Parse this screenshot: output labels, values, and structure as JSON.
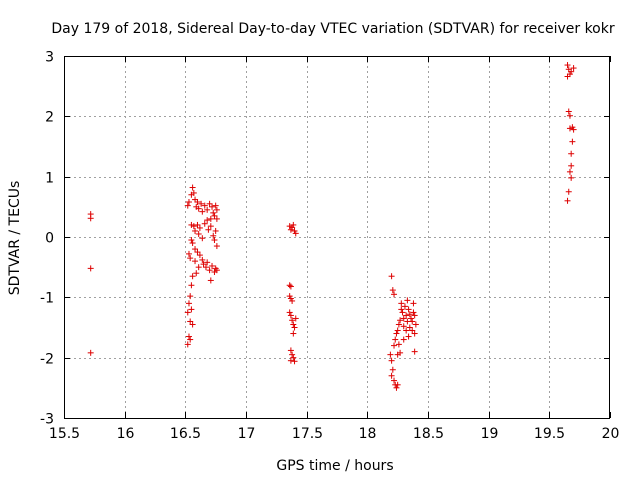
{
  "chart_data": {
    "type": "scatter",
    "title": "Day 179 of 2018, Sidereal Day-to-day VTEC variation (SDTVAR) for receiver kokr",
    "xlabel": "GPS time / hours",
    "ylabel": "SDTVAR / TECUs",
    "xlim": [
      15.5,
      20
    ],
    "ylim": [
      -3,
      3
    ],
    "xticks": [
      "15.5",
      "16",
      "16.5",
      "17",
      "17.5",
      "18",
      "18.5",
      "19",
      "19.5",
      "20"
    ],
    "yticks": [
      "-3",
      "-2",
      "-1",
      "0",
      "1",
      "2",
      "3"
    ],
    "grid": true,
    "marker": "+",
    "color": "#dd0000",
    "series": [
      {
        "name": "SDTVAR",
        "points": [
          [
            15.72,
            0.38
          ],
          [
            15.72,
            0.31
          ],
          [
            15.72,
            -0.52
          ],
          [
            15.72,
            -1.92
          ],
          [
            16.52,
            0.52
          ],
          [
            16.53,
            0.58
          ],
          [
            16.55,
            0.7
          ],
          [
            16.56,
            0.82
          ],
          [
            16.57,
            0.73
          ],
          [
            16.58,
            0.62
          ],
          [
            16.59,
            0.5
          ],
          [
            16.6,
            0.58
          ],
          [
            16.61,
            0.47
          ],
          [
            16.63,
            0.55
          ],
          [
            16.64,
            0.42
          ],
          [
            16.66,
            0.52
          ],
          [
            16.68,
            0.45
          ],
          [
            16.7,
            0.55
          ],
          [
            16.72,
            0.5
          ],
          [
            16.73,
            0.4
          ],
          [
            16.75,
            0.52
          ],
          [
            16.76,
            0.45
          ],
          [
            16.74,
            0.35
          ],
          [
            16.71,
            0.3
          ],
          [
            16.68,
            0.28
          ],
          [
            16.76,
            0.3
          ],
          [
            16.55,
            0.2
          ],
          [
            16.57,
            0.18
          ],
          [
            16.58,
            0.1
          ],
          [
            16.6,
            0.2
          ],
          [
            16.61,
            0.05
          ],
          [
            16.62,
            0.15
          ],
          [
            16.64,
            -0.02
          ],
          [
            16.66,
            0.22
          ],
          [
            16.69,
            0.12
          ],
          [
            16.71,
            0.18
          ],
          [
            16.73,
            0.02
          ],
          [
            16.74,
            -0.05
          ],
          [
            16.75,
            0.1
          ],
          [
            16.76,
            -0.15
          ],
          [
            16.55,
            -0.05
          ],
          [
            16.56,
            -0.1
          ],
          [
            16.58,
            -0.2
          ],
          [
            16.6,
            -0.25
          ],
          [
            16.62,
            -0.3
          ],
          [
            16.64,
            -0.38
          ],
          [
            16.65,
            -0.45
          ],
          [
            16.67,
            -0.5
          ],
          [
            16.68,
            -0.42
          ],
          [
            16.7,
            -0.55
          ],
          [
            16.72,
            -0.48
          ],
          [
            16.74,
            -0.58
          ],
          [
            16.75,
            -0.52
          ],
          [
            16.76,
            -0.55
          ],
          [
            16.71,
            -0.72
          ],
          [
            16.53,
            -0.28
          ],
          [
            16.54,
            -0.35
          ],
          [
            16.59,
            -0.6
          ],
          [
            16.61,
            -0.5
          ],
          [
            16.58,
            -0.4
          ],
          [
            16.56,
            -0.65
          ],
          [
            16.55,
            -0.8
          ],
          [
            16.54,
            -0.98
          ],
          [
            16.53,
            -1.1
          ],
          [
            16.55,
            -1.2
          ],
          [
            16.52,
            -1.25
          ],
          [
            16.54,
            -1.4
          ],
          [
            16.56,
            -1.45
          ],
          [
            16.53,
            -1.65
          ],
          [
            16.54,
            -1.7
          ],
          [
            16.52,
            -1.78
          ],
          [
            17.36,
            0.18
          ],
          [
            17.37,
            0.12
          ],
          [
            17.38,
            0.16
          ],
          [
            17.39,
            0.2
          ],
          [
            17.4,
            0.1
          ],
          [
            17.41,
            0.06
          ],
          [
            17.36,
            -0.8
          ],
          [
            17.37,
            -0.82
          ],
          [
            17.36,
            -0.98
          ],
          [
            17.37,
            -1.02
          ],
          [
            17.38,
            -1.06
          ],
          [
            17.36,
            -1.25
          ],
          [
            17.37,
            -1.3
          ],
          [
            17.38,
            -1.38
          ],
          [
            17.39,
            -1.45
          ],
          [
            17.4,
            -1.5
          ],
          [
            17.41,
            -1.35
          ],
          [
            17.39,
            -1.6
          ],
          [
            17.37,
            -1.88
          ],
          [
            17.38,
            -1.95
          ],
          [
            17.37,
            -2.05
          ],
          [
            17.39,
            -2.0
          ],
          [
            17.4,
            -2.06
          ],
          [
            18.2,
            -0.65
          ],
          [
            18.21,
            -0.88
          ],
          [
            18.22,
            -0.95
          ],
          [
            18.19,
            -1.95
          ],
          [
            18.2,
            -2.05
          ],
          [
            18.21,
            -2.2
          ],
          [
            18.2,
            -2.3
          ],
          [
            18.22,
            -2.38
          ],
          [
            18.23,
            -2.45
          ],
          [
            18.24,
            -2.5
          ],
          [
            18.25,
            -2.45
          ],
          [
            18.22,
            -1.8
          ],
          [
            18.23,
            -1.7
          ],
          [
            18.24,
            -1.6
          ],
          [
            18.25,
            -1.55
          ],
          [
            18.25,
            -1.95
          ],
          [
            18.26,
            -1.45
          ],
          [
            18.27,
            -1.38
          ],
          [
            18.26,
            -1.78
          ],
          [
            18.27,
            -1.92
          ],
          [
            18.28,
            -1.2
          ],
          [
            18.29,
            -1.25
          ],
          [
            18.3,
            -1.35
          ],
          [
            18.3,
            -1.48
          ],
          [
            18.28,
            -1.1
          ],
          [
            18.31,
            -1.15
          ],
          [
            18.32,
            -1.3
          ],
          [
            18.32,
            -1.55
          ],
          [
            18.33,
            -1.05
          ],
          [
            18.33,
            -1.4
          ],
          [
            18.34,
            -1.2
          ],
          [
            18.35,
            -1.28
          ],
          [
            18.35,
            -1.5
          ],
          [
            18.36,
            -1.35
          ],
          [
            18.37,
            -1.4
          ],
          [
            18.37,
            -1.55
          ],
          [
            18.38,
            -1.25
          ],
          [
            18.38,
            -1.1
          ],
          [
            18.39,
            -1.3
          ],
          [
            18.39,
            -1.6
          ],
          [
            18.4,
            -1.45
          ],
          [
            18.34,
            -1.65
          ],
          [
            18.3,
            -1.7
          ],
          [
            18.39,
            -1.9
          ],
          [
            19.65,
            2.85
          ],
          [
            19.66,
            2.78
          ],
          [
            19.68,
            2.74
          ],
          [
            19.7,
            2.8
          ],
          [
            19.67,
            2.7
          ],
          [
            19.65,
            2.66
          ],
          [
            19.66,
            2.08
          ],
          [
            19.67,
            2.01
          ],
          [
            19.67,
            1.8
          ],
          [
            19.69,
            1.82
          ],
          [
            19.7,
            1.78
          ],
          [
            19.69,
            1.58
          ],
          [
            19.68,
            1.38
          ],
          [
            19.68,
            1.18
          ],
          [
            19.67,
            1.08
          ],
          [
            19.68,
            0.98
          ],
          [
            19.66,
            0.75
          ],
          [
            19.65,
            0.6
          ]
        ]
      }
    ]
  }
}
